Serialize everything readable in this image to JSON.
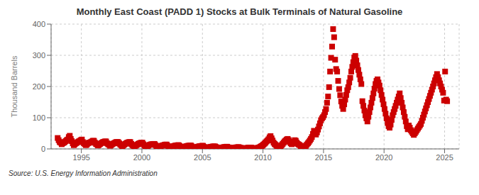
{
  "chart_data": {
    "type": "scatter",
    "title": "Monthly East Coast (PADD 1) Stocks at Bulk Terminals of Natural Gasoline",
    "ylabel": "Thousand Barrels",
    "annotations": [
      "Source: U.S. Energy Information Administration"
    ],
    "color": "#cc0000",
    "marker": "square",
    "grid": true,
    "xlim": [
      1992.5,
      2026.2
    ],
    "ylim": [
      0,
      400
    ],
    "xticks": [
      1995,
      2000,
      2005,
      2010,
      2015,
      2020,
      2025
    ],
    "yticks": [
      0,
      100,
      200,
      300,
      400
    ],
    "x": [
      1993.041667,
      1993.125,
      1993.208333,
      1993.291667,
      1993.375,
      1993.458333,
      1993.541667,
      1993.625,
      1993.708333,
      1993.791667,
      1993.875,
      1993.958333,
      1994.041667,
      1994.125,
      1994.208333,
      1994.291667,
      1994.375,
      1994.458333,
      1994.541667,
      1994.625,
      1994.708333,
      1994.791667,
      1994.875,
      1994.958333,
      1995.041667,
      1995.125,
      1995.208333,
      1995.291667,
      1995.375,
      1995.458333,
      1995.541667,
      1995.625,
      1995.708333,
      1995.791667,
      1995.875,
      1995.958333,
      1996.041667,
      1996.125,
      1996.208333,
      1996.291667,
      1996.375,
      1996.458333,
      1996.541667,
      1996.625,
      1996.708333,
      1996.791667,
      1996.875,
      1996.958333,
      1997.041667,
      1997.125,
      1997.208333,
      1997.291667,
      1997.375,
      1997.458333,
      1997.541667,
      1997.625,
      1997.708333,
      1997.791667,
      1997.875,
      1997.958333,
      1998.041667,
      1998.125,
      1998.208333,
      1998.291667,
      1998.375,
      1998.458333,
      1998.541667,
      1998.625,
      1998.708333,
      1998.791667,
      1998.875,
      1998.958333,
      1999.041667,
      1999.125,
      1999.208333,
      1999.291667,
      1999.375,
      1999.458333,
      1999.541667,
      1999.625,
      1999.708333,
      1999.791667,
      1999.875,
      1999.958333,
      2000.041667,
      2000.125,
      2000.208333,
      2000.291667,
      2000.375,
      2000.458333,
      2000.541667,
      2000.625,
      2000.708333,
      2000.791667,
      2000.875,
      2000.958333,
      2001.041667,
      2001.125,
      2001.208333,
      2001.291667,
      2001.375,
      2001.458333,
      2001.541667,
      2001.625,
      2001.708333,
      2001.791667,
      2001.875,
      2001.958333,
      2002.041667,
      2002.125,
      2002.208333,
      2002.291667,
      2002.375,
      2002.458333,
      2002.541667,
      2002.625,
      2002.708333,
      2002.791667,
      2002.875,
      2002.958333,
      2003.041667,
      2003.125,
      2003.208333,
      2003.291667,
      2003.375,
      2003.458333,
      2003.541667,
      2003.625,
      2003.708333,
      2003.791667,
      2003.875,
      2003.958333,
      2004.041667,
      2004.125,
      2004.208333,
      2004.291667,
      2004.375,
      2004.458333,
      2004.541667,
      2004.625,
      2004.708333,
      2004.791667,
      2004.875,
      2004.958333,
      2005.041667,
      2005.125,
      2005.208333,
      2005.291667,
      2005.375,
      2005.458333,
      2005.541667,
      2005.625,
      2005.708333,
      2005.791667,
      2005.875,
      2005.958333,
      2006.041667,
      2006.125,
      2006.208333,
      2006.291667,
      2006.375,
      2006.458333,
      2006.541667,
      2006.625,
      2006.708333,
      2006.791667,
      2006.875,
      2006.958333,
      2007.041667,
      2007.125,
      2007.208333,
      2007.291667,
      2007.375,
      2007.458333,
      2007.541667,
      2007.625,
      2007.708333,
      2007.791667,
      2007.875,
      2007.958333,
      2008.041667,
      2008.125,
      2008.208333,
      2008.291667,
      2008.375,
      2008.458333,
      2008.541667,
      2008.625,
      2008.708333,
      2008.791667,
      2008.875,
      2008.958333,
      2009.041667,
      2009.125,
      2009.208333,
      2009.291667,
      2009.375,
      2009.458333,
      2009.541667,
      2009.625,
      2009.708333,
      2009.791667,
      2009.875,
      2009.958333,
      2010.041667,
      2010.125,
      2010.208333,
      2010.291667,
      2010.375,
      2010.458333,
      2010.541667,
      2010.625,
      2010.708333,
      2010.791667,
      2010.875,
      2010.958333,
      2011.041667,
      2011.125,
      2011.208333,
      2011.291667,
      2011.375,
      2011.458333,
      2011.541667,
      2011.625,
      2011.708333,
      2011.791667,
      2011.875,
      2011.958333,
      2012.041667,
      2012.125,
      2012.208333,
      2012.291667,
      2012.375,
      2012.458333,
      2012.541667,
      2012.625,
      2012.708333,
      2012.791667,
      2012.875,
      2012.958333,
      2013.041667,
      2013.125,
      2013.208333,
      2013.291667,
      2013.375,
      2013.458333,
      2013.541667,
      2013.625,
      2013.708333,
      2013.791667,
      2013.875,
      2013.958333,
      2014.041667,
      2014.125,
      2014.208333,
      2014.291667,
      2014.375,
      2014.458333,
      2014.541667,
      2014.625,
      2014.708333,
      2014.791667,
      2014.875,
      2014.958333,
      2015.041667,
      2015.125,
      2015.208333,
      2015.291667,
      2015.375,
      2015.458333,
      2015.541667,
      2015.625,
      2015.708333,
      2015.791667,
      2015.875,
      2015.958333,
      2016.041667,
      2016.125,
      2016.208333,
      2016.291667,
      2016.375,
      2016.458333,
      2016.541667,
      2016.625,
      2016.708333,
      2016.791667,
      2016.875,
      2016.958333,
      2017.041667,
      2017.125,
      2017.208333,
      2017.291667,
      2017.375,
      2017.458333,
      2017.541667,
      2017.625,
      2017.708333,
      2017.791667,
      2017.875,
      2017.958333,
      2018.041667,
      2018.125,
      2018.208333,
      2018.291667,
      2018.375,
      2018.458333,
      2018.541667,
      2018.625,
      2018.708333,
      2018.791667,
      2018.875,
      2018.958333,
      2019.041667,
      2019.125,
      2019.208333,
      2019.291667,
      2019.375,
      2019.458333,
      2019.541667,
      2019.625,
      2019.708333,
      2019.791667,
      2019.875,
      2019.958333,
      2020.041667,
      2020.125,
      2020.208333,
      2020.291667,
      2020.375,
      2020.458333,
      2020.541667,
      2020.625,
      2020.708333,
      2020.791667,
      2020.875,
      2020.958333,
      2021.041667,
      2021.125,
      2021.208333,
      2021.291667,
      2021.375,
      2021.458333,
      2021.541667,
      2021.625,
      2021.708333,
      2021.791667,
      2021.875,
      2021.958333,
      2022.041667,
      2022.125,
      2022.208333,
      2022.291667,
      2022.375,
      2022.458333,
      2022.541667,
      2022.625,
      2022.708333,
      2022.791667,
      2022.875,
      2022.958333,
      2023.041667,
      2023.125,
      2023.208333,
      2023.291667,
      2023.375,
      2023.458333,
      2023.541667,
      2023.625,
      2023.708333,
      2023.791667,
      2023.875,
      2023.958333,
      2024.041667,
      2024.125,
      2024.208333,
      2024.291667,
      2024.375,
      2024.458333,
      2024.541667,
      2024.625,
      2024.708333,
      2024.791667,
      2024.875,
      2024.958333,
      2025.041667,
      2025.125,
      2025.208333
    ],
    "values": [
      35,
      28,
      22,
      20,
      15,
      18,
      20,
      22,
      25,
      28,
      30,
      38,
      42,
      32,
      25,
      18,
      12,
      15,
      18,
      20,
      22,
      24,
      26,
      28,
      30,
      22,
      18,
      15,
      12,
      14,
      18,
      20,
      20,
      22,
      24,
      26,
      26,
      20,
      16,
      14,
      11,
      13,
      16,
      18,
      20,
      22,
      23,
      24,
      24,
      18,
      15,
      13,
      10,
      12,
      15,
      17,
      18,
      20,
      22,
      22,
      22,
      18,
      14,
      12,
      9,
      11,
      14,
      16,
      18,
      20,
      21,
      22,
      22,
      16,
      12,
      10,
      8,
      10,
      12,
      14,
      16,
      18,
      19,
      20,
      20,
      15,
      11,
      9,
      7,
      9,
      11,
      13,
      14,
      15,
      15,
      16,
      16,
      12,
      9,
      7,
      5,
      6,
      8,
      10,
      11,
      12,
      13,
      14,
      14,
      10,
      8,
      6,
      4,
      5,
      7,
      9,
      10,
      11,
      11,
      12,
      12,
      9,
      7,
      5,
      3,
      4,
      6,
      8,
      9,
      10,
      10,
      11,
      11,
      8,
      6,
      4,
      3,
      4,
      5,
      7,
      8,
      9,
      9,
      10,
      10,
      7,
      5,
      3,
      2,
      3,
      4,
      6,
      7,
      7,
      8,
      8,
      8,
      6,
      4,
      3,
      2,
      2,
      3,
      4,
      5,
      6,
      6,
      7,
      7,
      5,
      4,
      3,
      2,
      2,
      3,
      4,
      4,
      5,
      5,
      6,
      5,
      4,
      3,
      2,
      1,
      1,
      2,
      3,
      3,
      4,
      4,
      4,
      4,
      3,
      2,
      2,
      1,
      2,
      3,
      4,
      5,
      7,
      9,
      11,
      14,
      17,
      20,
      24,
      27,
      31,
      37,
      41,
      34,
      27,
      20,
      16,
      13,
      10,
      8,
      6,
      5,
      8,
      12,
      16,
      20,
      24,
      27,
      30,
      32,
      28,
      22,
      18,
      15,
      18,
      23,
      28,
      26,
      20,
      16,
      14,
      12,
      9,
      7,
      5,
      4,
      6,
      10,
      14,
      18,
      22,
      27,
      32,
      38,
      48,
      58,
      52,
      46,
      53,
      62,
      72,
      82,
      92,
      98,
      102,
      108,
      118,
      128,
      148,
      168,
      198,
      248,
      292,
      328,
      384,
      358,
      286,
      256,
      248,
      218,
      192,
      172,
      152,
      138,
      128,
      143,
      158,
      173,
      188,
      198,
      213,
      228,
      248,
      263,
      278,
      293,
      298,
      283,
      268,
      253,
      238,
      223,
      208,
      153,
      138,
      123,
      108,
      98,
      88,
      103,
      118,
      133,
      148,
      163,
      178,
      193,
      208,
      218,
      223,
      213,
      203,
      188,
      173,
      158,
      143,
      128,
      113,
      98,
      83,
      73,
      68,
      78,
      93,
      108,
      118,
      128,
      138,
      148,
      158,
      168,
      178,
      163,
      148,
      133,
      118,
      103,
      88,
      73,
      63,
      75,
      68,
      60,
      55,
      50,
      45,
      50,
      55,
      60,
      65,
      70,
      75,
      80,
      90,
      100,
      110,
      120,
      130,
      140,
      150,
      160,
      170,
      180,
      190,
      200,
      210,
      220,
      230,
      240,
      230,
      220,
      210,
      200,
      190,
      180,
      155,
      248,
      158,
      153
    ]
  }
}
